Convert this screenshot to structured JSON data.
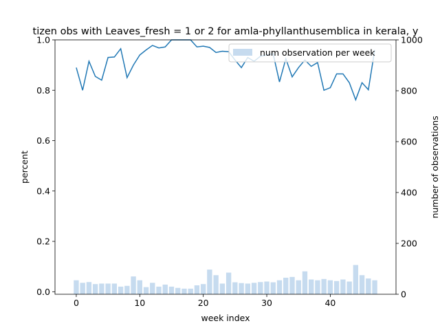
{
  "chart_data": {
    "type": "bar+line",
    "title": "tizen obs with Leaves_fresh = 1 or 2 for amla-phyllanthusemblica in kerala, y",
    "xlabel": "week index",
    "ylabel_left": "percent",
    "ylabel_right": "number of observations",
    "xlim": [
      -3.35,
      50.35
    ],
    "ylim_left": [
      -0.01,
      1.0
    ],
    "ylim_right": [
      0,
      1000
    ],
    "xticks": [
      "0",
      "10",
      "20",
      "30",
      "40"
    ],
    "yticks_left": [
      "0.0",
      "0.2",
      "0.4",
      "0.6",
      "0.8",
      "1.0"
    ],
    "yticks_right": [
      "0",
      "200",
      "400",
      "600",
      "800",
      "1000"
    ],
    "legend": {
      "label": "num observation per week",
      "position": "upper right"
    },
    "colors": {
      "line": "#1f77b4",
      "bar": "#c6dbef"
    },
    "weeks": [
      0,
      1,
      2,
      3,
      4,
      5,
      6,
      7,
      8,
      9,
      10,
      11,
      12,
      13,
      14,
      15,
      16,
      17,
      18,
      19,
      20,
      21,
      22,
      23,
      24,
      25,
      26,
      27,
      28,
      29,
      30,
      31,
      32,
      33,
      34,
      35,
      36,
      37,
      38,
      39,
      40,
      41,
      42,
      43,
      44,
      45,
      46,
      47
    ],
    "counts": [
      55,
      45,
      48,
      40,
      42,
      42,
      42,
      30,
      33,
      70,
      55,
      28,
      45,
      30,
      38,
      30,
      25,
      22,
      22,
      35,
      40,
      97,
      75,
      42,
      85,
      47,
      44,
      42,
      45,
      48,
      50,
      47,
      55,
      65,
      68,
      55,
      90,
      58,
      55,
      60,
      55,
      52,
      58,
      50,
      115,
      75,
      62,
      55
    ],
    "percent": [
      0.89,
      0.8,
      0.915,
      0.855,
      0.84,
      0.93,
      0.932,
      0.965,
      0.85,
      0.9,
      0.94,
      0.96,
      0.978,
      0.968,
      0.972,
      1.0,
      1.0,
      1.0,
      1.0,
      0.972,
      0.975,
      0.97,
      0.95,
      0.955,
      0.953,
      0.92,
      0.89,
      0.93,
      0.915,
      0.935,
      0.94,
      0.945,
      0.833,
      0.925,
      0.853,
      0.89,
      0.92,
      0.895,
      0.91,
      0.8,
      0.81,
      0.865,
      0.865,
      0.83,
      0.762,
      0.83,
      0.802,
      0.96
    ]
  }
}
